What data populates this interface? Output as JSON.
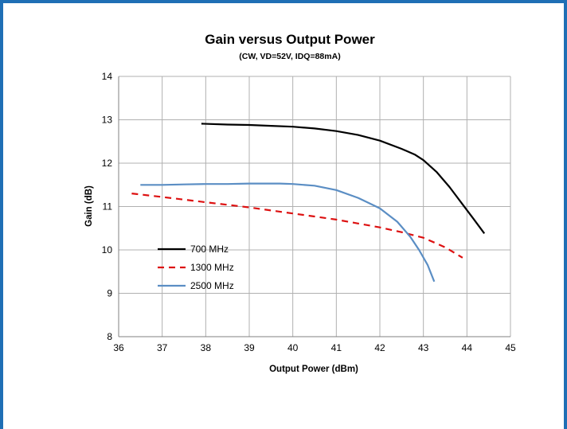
{
  "colors": {
    "frame_border": "#1f6fb5",
    "grid": "#b0b0b0",
    "series_700": "#000000",
    "series_1300": "#dd1111",
    "series_2500": "#5b8ec4"
  },
  "chart_data": {
    "type": "line",
    "title": "Gain versus Output Power",
    "subtitle": "(CW, VD=52V, IDQ=88mA)",
    "xlabel": "Output Power (dBm)",
    "ylabel": "Gain (dB)",
    "xlim": [
      36,
      45
    ],
    "ylim": [
      8,
      14
    ],
    "xticks": [
      "36",
      "37",
      "38",
      "39",
      "40",
      "41",
      "42",
      "43",
      "44",
      "45"
    ],
    "yticks": [
      "8",
      "9",
      "10",
      "11",
      "12",
      "13",
      "14"
    ],
    "grid": true,
    "legend_position": "bottom-left inside",
    "series": [
      {
        "name": "700 MHz",
        "style": "solid",
        "color": "#000000",
        "points": [
          [
            37.9,
            12.91
          ],
          [
            38.5,
            12.89
          ],
          [
            39.0,
            12.88
          ],
          [
            39.5,
            12.86
          ],
          [
            40.0,
            12.84
          ],
          [
            40.5,
            12.8
          ],
          [
            41.0,
            12.74
          ],
          [
            41.5,
            12.65
          ],
          [
            42.0,
            12.52
          ],
          [
            42.5,
            12.33
          ],
          [
            42.8,
            12.2
          ],
          [
            43.0,
            12.07
          ],
          [
            43.3,
            11.8
          ],
          [
            43.6,
            11.45
          ],
          [
            43.9,
            11.05
          ],
          [
            44.15,
            10.72
          ],
          [
            44.4,
            10.38
          ]
        ]
      },
      {
        "name": "1300 MHz",
        "style": "dashed",
        "color": "#dd1111",
        "points": [
          [
            36.3,
            11.3
          ],
          [
            37.0,
            11.22
          ],
          [
            37.5,
            11.16
          ],
          [
            38.0,
            11.1
          ],
          [
            38.5,
            11.04
          ],
          [
            39.0,
            10.98
          ],
          [
            39.5,
            10.91
          ],
          [
            40.0,
            10.84
          ],
          [
            40.5,
            10.77
          ],
          [
            41.0,
            10.7
          ],
          [
            41.5,
            10.61
          ],
          [
            42.0,
            10.52
          ],
          [
            42.5,
            10.41
          ],
          [
            43.0,
            10.28
          ],
          [
            43.5,
            10.06
          ],
          [
            43.9,
            9.82
          ]
        ]
      },
      {
        "name": "2500 MHz",
        "style": "solid",
        "color": "#5b8ec4",
        "points": [
          [
            36.5,
            11.5
          ],
          [
            37.0,
            11.5
          ],
          [
            37.5,
            11.51
          ],
          [
            38.0,
            11.52
          ],
          [
            38.5,
            11.52
          ],
          [
            39.0,
            11.53
          ],
          [
            39.3,
            11.53
          ],
          [
            39.7,
            11.53
          ],
          [
            40.0,
            11.52
          ],
          [
            40.5,
            11.48
          ],
          [
            41.0,
            11.38
          ],
          [
            41.5,
            11.2
          ],
          [
            42.0,
            10.96
          ],
          [
            42.4,
            10.65
          ],
          [
            42.7,
            10.3
          ],
          [
            42.9,
            10.0
          ],
          [
            43.1,
            9.65
          ],
          [
            43.25,
            9.27
          ]
        ]
      }
    ]
  }
}
